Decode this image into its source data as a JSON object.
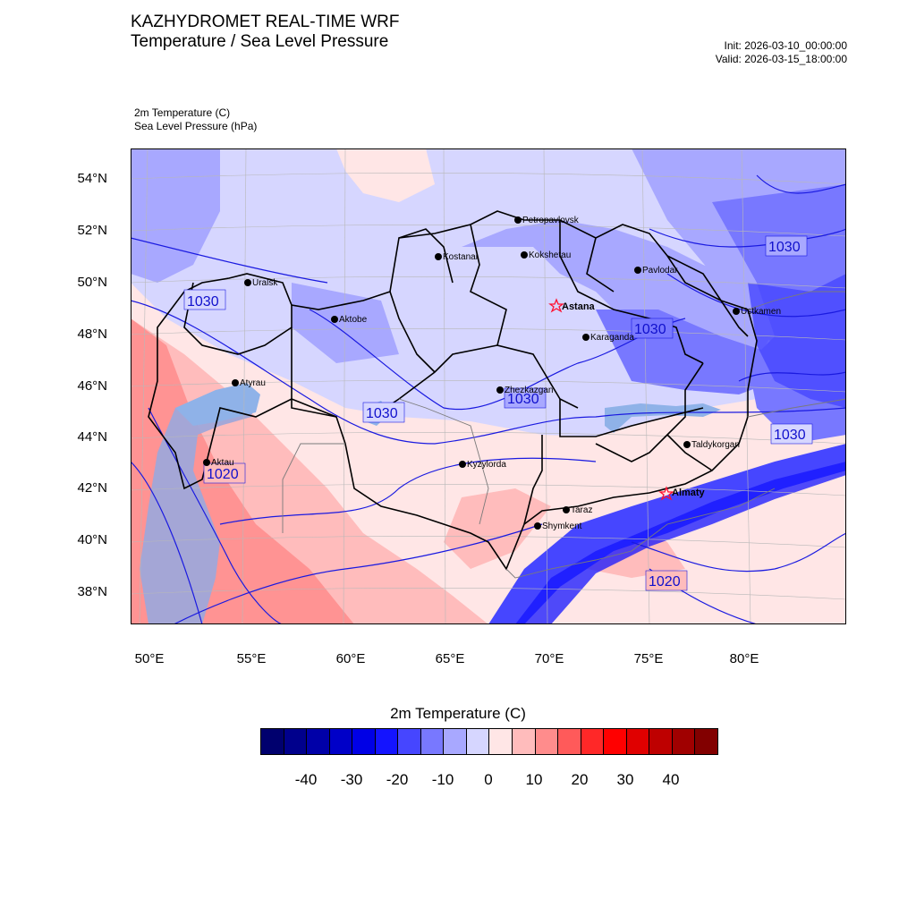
{
  "header": {
    "title_line1": "KAZHYDROMET REAL-TIME WRF",
    "title_line2": "Temperature / Sea Level Pressure",
    "init": "Init: 2026-03-10_00:00:00",
    "valid": "Valid: 2026-03-15_18:00:00"
  },
  "variables": {
    "temp_label": "2m Temperature   (C)",
    "slp_label": "Sea Level Pressure   (hPa)"
  },
  "axes": {
    "lat_ticks": [
      "54°N",
      "52°N",
      "50°N",
      "48°N",
      "46°N",
      "44°N",
      "42°N",
      "40°N",
      "38°N"
    ],
    "lon_ticks": [
      "50°E",
      "55°E",
      "60°E",
      "65°E",
      "70°E",
      "75°E",
      "80°E"
    ]
  },
  "cities": {
    "petropavlovsk": "Petropavlovsk",
    "kostanai": "Kostanai",
    "kokshetau": "Kokshetau",
    "pavlodar": "Pavlodar",
    "uralsk": "Uralsk",
    "astana": "Astana",
    "aktobe": "Aktobe",
    "ustkamen": "Ustkamen",
    "karaganda": "Karaganda",
    "atyrau": "Atyrau",
    "zhezkazgan": "Zhezkazgan",
    "taldykorgan": "Taldykorgan",
    "aktau": "Aktau",
    "kyzylorda": "Kyzylorda",
    "almaty": "Almaty",
    "taraz": "Taraz",
    "shymkent": "Shymkent"
  },
  "isobars": {
    "i1": "1030",
    "i2": "1030",
    "i3": "1030",
    "i4": "1030",
    "i5": "1030",
    "i6": "1030",
    "i7": "1020",
    "i8": "1020"
  },
  "colorbar": {
    "title": "2m Temperature  (C)",
    "colors": [
      "#00006e",
      "#00008c",
      "#0000a8",
      "#0000c8",
      "#0000e6",
      "#1414ff",
      "#4646ff",
      "#7878ff",
      "#a8a8ff",
      "#d6d6ff",
      "#ffe6e6",
      "#ffbcbc",
      "#ff8c8c",
      "#ff5a5a",
      "#ff2828",
      "#ff0000",
      "#e00000",
      "#be0000",
      "#a00000",
      "#820000"
    ],
    "labels": [
      "-40",
      "-30",
      "-20",
      "-10",
      "0",
      "10",
      "20",
      "30",
      "40"
    ]
  }
}
